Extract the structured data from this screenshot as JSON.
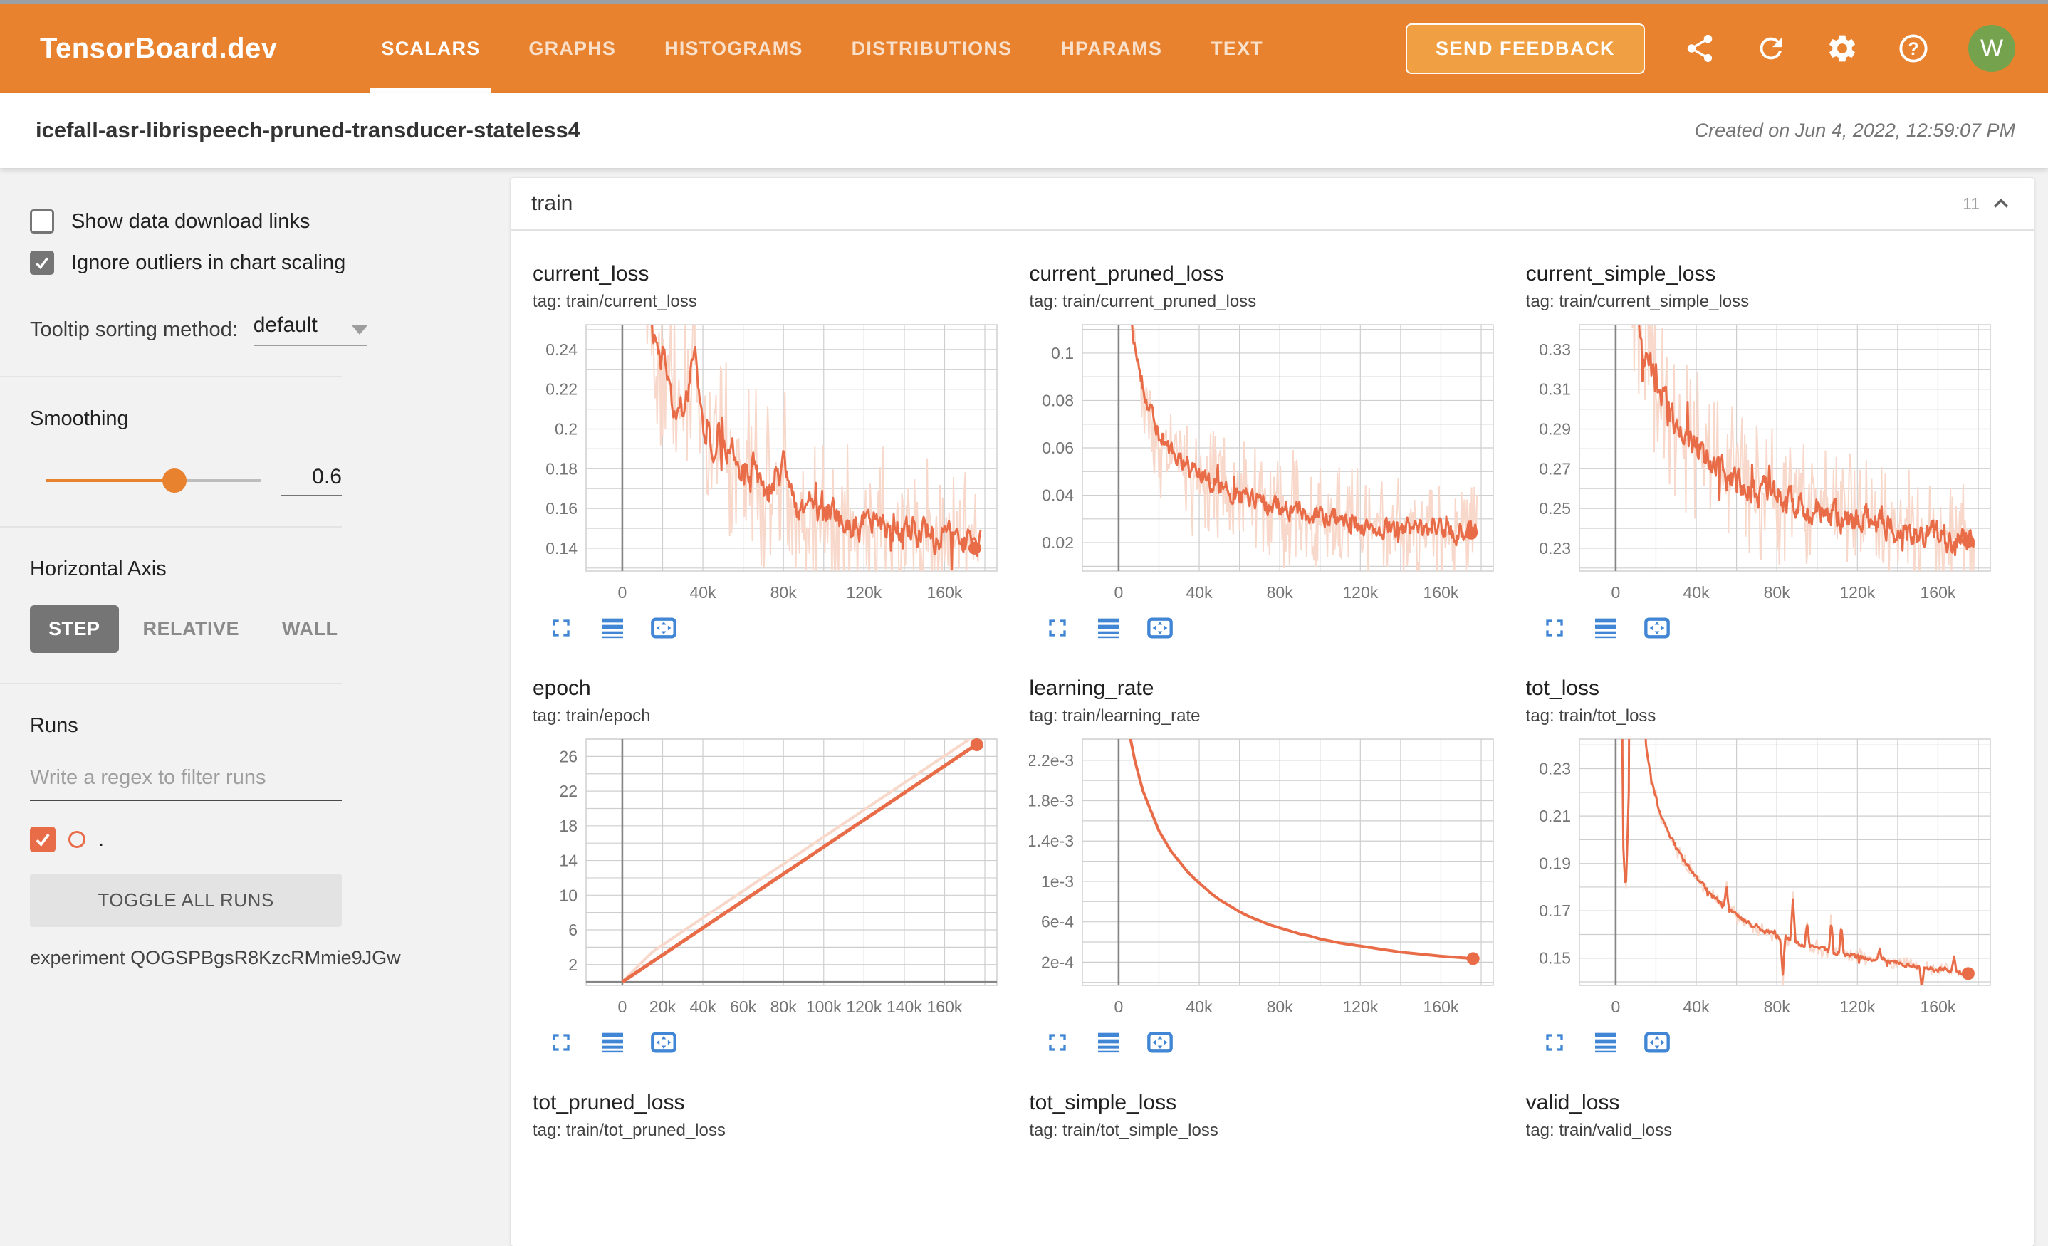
{
  "navbar": {
    "brand": "TensorBoard.dev",
    "tabs": [
      {
        "label": "SCALARS",
        "active": true
      },
      {
        "label": "GRAPHS",
        "active": false
      },
      {
        "label": "HISTOGRAMS",
        "active": false
      },
      {
        "label": "DISTRIBUTIONS",
        "active": false
      },
      {
        "label": "HPARAMS",
        "active": false
      },
      {
        "label": "TEXT",
        "active": false
      }
    ],
    "feedback_button": "SEND FEEDBACK",
    "icons": [
      "share",
      "refresh",
      "settings",
      "help"
    ],
    "avatar": "W",
    "colors": {
      "bar": "#e8822f",
      "feedback_bg": "#f0a043",
      "avatar_bg": "#75a24c"
    }
  },
  "header": {
    "title": "icefall-asr-librispeech-pruned-transducer-stateless4",
    "created": "Created on Jun 4, 2022, 12:59:07 PM"
  },
  "sidebar": {
    "checkboxes": [
      {
        "label": "Show data download links",
        "checked": false
      },
      {
        "label": "Ignore outliers in chart scaling",
        "checked": true
      }
    ],
    "tooltip_sorting": {
      "label": "Tooltip sorting method:",
      "value": "default"
    },
    "smoothing": {
      "label": "Smoothing",
      "value": "0.6",
      "fraction": 0.6
    },
    "horizontal_axis": {
      "label": "Horizontal Axis",
      "options": [
        {
          "label": "STEP",
          "active": true
        },
        {
          "label": "RELATIVE",
          "active": false
        },
        {
          "label": "WALL",
          "active": false
        }
      ]
    },
    "runs": {
      "label": "Runs",
      "filter_placeholder": "Write a regex to filter runs",
      "run_name": ".",
      "run_checked": true,
      "run_color": "#e96c48",
      "toggle_button": "TOGGLE ALL RUNS",
      "experiment": "experiment QOGSPBgsR8KzcRMmie9JGw"
    }
  },
  "main": {
    "section": {
      "name": "train",
      "count": "11"
    }
  },
  "chart_style": {
    "line": "#e96c48",
    "band": "#f8d8ca",
    "grid": "#cecece",
    "axis": "#858585",
    "tick": "#757575",
    "icon_blue": "#4186d4"
  },
  "chart_data": [
    {
      "type": "line",
      "render": "full",
      "title": "current_loss",
      "tag": "tag: train/current_loss",
      "xlim": [
        -18000,
        186000
      ],
      "ylim": [
        0.1285,
        0.2525
      ],
      "xgrid": 20000,
      "ygrid": 0.01,
      "xticks": [
        [
          0,
          "0"
        ],
        [
          40000,
          "40k"
        ],
        [
          80000,
          "80k"
        ],
        [
          120000,
          "120k"
        ],
        [
          160000,
          "160k"
        ]
      ],
      "yticks": [
        [
          0.14,
          "0.14"
        ],
        [
          0.16,
          "0.16"
        ],
        [
          0.18,
          "0.18"
        ],
        [
          0.2,
          "0.2"
        ],
        [
          0.22,
          "0.22"
        ],
        [
          0.24,
          "0.24"
        ]
      ],
      "xstart": 2000,
      "xend": 178000,
      "noise": 0.008,
      "band": 0.052,
      "seed": 11,
      "lw": 3,
      "end_dot": true,
      "trend": [
        [
          2000,
          0.5
        ],
        [
          8000,
          0.32
        ],
        [
          12000,
          0.28
        ],
        [
          15000,
          0.25
        ],
        [
          18000,
          0.232
        ],
        [
          21000,
          0.24
        ],
        [
          24000,
          0.215
        ],
        [
          27000,
          0.205
        ],
        [
          30000,
          0.21
        ],
        [
          33000,
          0.22
        ],
        [
          36000,
          0.235
        ],
        [
          39000,
          0.205
        ],
        [
          42000,
          0.198
        ],
        [
          45000,
          0.192
        ],
        [
          48000,
          0.2
        ],
        [
          52000,
          0.185
        ],
        [
          56000,
          0.19
        ],
        [
          60000,
          0.178
        ],
        [
          64000,
          0.183
        ],
        [
          68000,
          0.173
        ],
        [
          72000,
          0.168
        ],
        [
          76000,
          0.178
        ],
        [
          80000,
          0.182
        ],
        [
          84000,
          0.163
        ],
        [
          88000,
          0.16
        ],
        [
          92000,
          0.165
        ],
        [
          96000,
          0.158
        ],
        [
          100000,
          0.155
        ],
        [
          104000,
          0.162
        ],
        [
          108000,
          0.152
        ],
        [
          112000,
          0.155
        ],
        [
          116000,
          0.15
        ],
        [
          120000,
          0.153
        ],
        [
          124000,
          0.149
        ],
        [
          128000,
          0.155
        ],
        [
          132000,
          0.148
        ],
        [
          136000,
          0.152
        ],
        [
          140000,
          0.146
        ],
        [
          144000,
          0.151
        ],
        [
          148000,
          0.145
        ],
        [
          152000,
          0.149
        ],
        [
          156000,
          0.143
        ],
        [
          160000,
          0.148
        ],
        [
          164000,
          0.142
        ],
        [
          168000,
          0.146
        ],
        [
          172000,
          0.141
        ],
        [
          175000,
          0.14
        ]
      ]
    },
    {
      "type": "line",
      "render": "full",
      "title": "current_pruned_loss",
      "tag": "tag: train/current_pruned_loss",
      "xlim": [
        -18000,
        186000
      ],
      "ylim": [
        0.008,
        0.112
      ],
      "xgrid": 20000,
      "ygrid": 0.01,
      "xticks": [
        [
          0,
          "0"
        ],
        [
          40000,
          "40k"
        ],
        [
          80000,
          "80k"
        ],
        [
          120000,
          "120k"
        ],
        [
          160000,
          "160k"
        ]
      ],
      "yticks": [
        [
          0.02,
          "0.02"
        ],
        [
          0.04,
          "0.04"
        ],
        [
          0.06,
          "0.06"
        ],
        [
          0.08,
          "0.08"
        ],
        [
          0.1,
          "0.1"
        ]
      ],
      "xstart": 2000,
      "xend": 178000,
      "noise": 0.005,
      "band": 0.03,
      "seed": 22,
      "lw": 3,
      "end_dot": true,
      "trend": [
        [
          2000,
          0.16
        ],
        [
          5000,
          0.125
        ],
        [
          8000,
          0.105
        ],
        [
          10000,
          0.095
        ],
        [
          12000,
          0.088
        ],
        [
          14000,
          0.08
        ],
        [
          16000,
          0.074
        ],
        [
          18000,
          0.07
        ],
        [
          20000,
          0.066
        ],
        [
          23000,
          0.062
        ],
        [
          26000,
          0.058
        ],
        [
          30000,
          0.055
        ],
        [
          34000,
          0.052
        ],
        [
          38000,
          0.049
        ],
        [
          42000,
          0.047
        ],
        [
          46000,
          0.045
        ],
        [
          50000,
          0.044
        ],
        [
          55000,
          0.042
        ],
        [
          60000,
          0.04
        ],
        [
          66000,
          0.038
        ],
        [
          72000,
          0.037
        ],
        [
          78000,
          0.035
        ],
        [
          84000,
          0.034
        ],
        [
          90000,
          0.033
        ],
        [
          96000,
          0.032
        ],
        [
          102000,
          0.031
        ],
        [
          108000,
          0.03
        ],
        [
          114000,
          0.029
        ],
        [
          120000,
          0.028
        ],
        [
          128000,
          0.027
        ],
        [
          136000,
          0.0265
        ],
        [
          144000,
          0.026
        ],
        [
          152000,
          0.0255
        ],
        [
          160000,
          0.025
        ],
        [
          168000,
          0.0245
        ],
        [
          175000,
          0.024
        ]
      ]
    },
    {
      "type": "line",
      "render": "full",
      "title": "current_simple_loss",
      "tag": "tag: train/current_simple_loss",
      "xlim": [
        -18000,
        186000
      ],
      "ylim": [
        0.2185,
        0.3425
      ],
      "xgrid": 20000,
      "ygrid": 0.01,
      "xticks": [
        [
          0,
          "0"
        ],
        [
          40000,
          "40k"
        ],
        [
          80000,
          "80k"
        ],
        [
          120000,
          "120k"
        ],
        [
          160000,
          "160k"
        ]
      ],
      "yticks": [
        [
          0.23,
          "0.23"
        ],
        [
          0.25,
          "0.25"
        ],
        [
          0.27,
          "0.27"
        ],
        [
          0.29,
          "0.29"
        ],
        [
          0.31,
          "0.31"
        ],
        [
          0.33,
          "0.33"
        ]
      ],
      "xstart": 2000,
      "xend": 178000,
      "noise": 0.008,
      "band": 0.042,
      "seed": 33,
      "lw": 3,
      "end_dot": true,
      "trend": [
        [
          2000,
          0.42
        ],
        [
          6000,
          0.375
        ],
        [
          9000,
          0.352
        ],
        [
          12000,
          0.338
        ],
        [
          15000,
          0.326
        ],
        [
          18000,
          0.318
        ],
        [
          21000,
          0.31
        ],
        [
          24000,
          0.303
        ],
        [
          27000,
          0.297
        ],
        [
          30000,
          0.292
        ],
        [
          34000,
          0.287
        ],
        [
          38000,
          0.282
        ],
        [
          42000,
          0.278
        ],
        [
          46000,
          0.275
        ],
        [
          50000,
          0.272
        ],
        [
          55000,
          0.268
        ],
        [
          60000,
          0.265
        ],
        [
          65000,
          0.262
        ],
        [
          70000,
          0.259
        ],
        [
          76000,
          0.257
        ],
        [
          82000,
          0.255
        ],
        [
          88000,
          0.253
        ],
        [
          94000,
          0.251
        ],
        [
          100000,
          0.249
        ],
        [
          108000,
          0.247
        ],
        [
          116000,
          0.245
        ],
        [
          124000,
          0.243
        ],
        [
          132000,
          0.241
        ],
        [
          140000,
          0.24
        ],
        [
          148000,
          0.238
        ],
        [
          156000,
          0.237
        ],
        [
          164000,
          0.235
        ],
        [
          170000,
          0.234
        ],
        [
          175000,
          0.2335
        ]
      ]
    },
    {
      "type": "line",
      "render": "full",
      "title": "epoch",
      "tag": "tag: train/epoch",
      "xlim": [
        -18000,
        186000
      ],
      "ylim": [
        -0.4,
        28.0
      ],
      "xgrid": 20000,
      "ygrid": 2,
      "xticks": [
        [
          0,
          "0"
        ],
        [
          20000,
          "20k"
        ],
        [
          40000,
          "40k"
        ],
        [
          60000,
          "60k"
        ],
        [
          80000,
          "80k"
        ],
        [
          100000,
          "100k"
        ],
        [
          120000,
          "120k"
        ],
        [
          140000,
          "140k"
        ],
        [
          160000,
          "160k"
        ]
      ],
      "yticks": [
        [
          2,
          "2"
        ],
        [
          6,
          "6"
        ],
        [
          10,
          "10"
        ],
        [
          14,
          "14"
        ],
        [
          18,
          "18"
        ],
        [
          22,
          "22"
        ],
        [
          26,
          "26"
        ]
      ],
      "xstart": 0,
      "xend": 176000,
      "noise": 0,
      "band": 0,
      "raw_shift": 1.15,
      "seed": 44,
      "lw": 5,
      "end_dot": true,
      "zero_y": 0,
      "trend": [
        [
          0,
          0.0
        ],
        [
          176000,
          27.4
        ]
      ]
    },
    {
      "type": "line",
      "render": "full",
      "title": "learning_rate",
      "tag": "tag: train/learning_rate",
      "xlim": [
        -18000,
        186000
      ],
      "ylim": [
        -3e-05,
        0.00241
      ],
      "xgrid": 20000,
      "ygrid": 0.0002,
      "xticks": [
        [
          0,
          "0"
        ],
        [
          40000,
          "40k"
        ],
        [
          80000,
          "80k"
        ],
        [
          120000,
          "120k"
        ],
        [
          160000,
          "160k"
        ]
      ],
      "yticks": [
        [
          0.0002,
          "2e-4"
        ],
        [
          0.0006,
          "6e-4"
        ],
        [
          0.001,
          "1e-3"
        ],
        [
          0.0014,
          "1.4e-3"
        ],
        [
          0.0018,
          "1.8e-3"
        ],
        [
          0.0022,
          "2.2e-3"
        ]
      ],
      "xstart": 4000,
      "xend": 176000,
      "noise": 0,
      "band": 0,
      "seed": 55,
      "lw": 4,
      "end_dot": true,
      "trend": [
        [
          4000,
          0.0026
        ],
        [
          6000,
          0.0024
        ],
        [
          8000,
          0.0022
        ],
        [
          10000,
          0.00205
        ],
        [
          12000,
          0.0019
        ],
        [
          14000,
          0.0018
        ],
        [
          17000,
          0.00165
        ],
        [
          20000,
          0.0015
        ],
        [
          23000,
          0.0014
        ],
        [
          26000,
          0.0013
        ],
        [
          30000,
          0.0012
        ],
        [
          34000,
          0.0011
        ],
        [
          38000,
          0.00102
        ],
        [
          42000,
          0.00095
        ],
        [
          46000,
          0.00088
        ],
        [
          50000,
          0.00082
        ],
        [
          55000,
          0.00076
        ],
        [
          60000,
          0.0007
        ],
        [
          65000,
          0.00065
        ],
        [
          70000,
          0.00061
        ],
        [
          75000,
          0.00057
        ],
        [
          80000,
          0.00054
        ],
        [
          85000,
          0.00051
        ],
        [
          90000,
          0.00048
        ],
        [
          95000,
          0.00046
        ],
        [
          100000,
          0.00043
        ],
        [
          110000,
          0.00039
        ],
        [
          120000,
          0.00036
        ],
        [
          130000,
          0.00033
        ],
        [
          140000,
          0.0003
        ],
        [
          150000,
          0.00028
        ],
        [
          160000,
          0.00026
        ],
        [
          170000,
          0.000245
        ],
        [
          176000,
          0.000235
        ]
      ]
    },
    {
      "type": "line",
      "render": "full",
      "title": "tot_loss",
      "tag": "tag: train/tot_loss",
      "xlim": [
        -18000,
        186000
      ],
      "ylim": [
        0.1385,
        0.2425
      ],
      "xgrid": 20000,
      "ygrid": 0.01,
      "xticks": [
        [
          0,
          "0"
        ],
        [
          40000,
          "40k"
        ],
        [
          80000,
          "80k"
        ],
        [
          120000,
          "120k"
        ],
        [
          160000,
          "160k"
        ]
      ],
      "yticks": [
        [
          0.15,
          "0.15"
        ],
        [
          0.17,
          "0.17"
        ],
        [
          0.19,
          "0.19"
        ],
        [
          0.21,
          "0.21"
        ],
        [
          0.23,
          "0.23"
        ]
      ],
      "xstart": 2000,
      "xend": 178000,
      "noise": 0.0012,
      "band": 0.004,
      "seed": 66,
      "lw": 3,
      "end_dot": true,
      "spikes": [
        [
          55000,
          0.013
        ],
        [
          83000,
          -0.02
        ],
        [
          88000,
          0.022
        ],
        [
          95000,
          0.012
        ],
        [
          107000,
          0.017
        ],
        [
          112000,
          0.015
        ],
        [
          131000,
          0.006
        ],
        [
          152000,
          -0.013
        ],
        [
          168000,
          0.007
        ]
      ],
      "trend": [
        [
          2000,
          0.55
        ],
        [
          3500,
          0.2
        ],
        [
          5000,
          0.178
        ],
        [
          6500,
          0.22
        ],
        [
          8000,
          0.5
        ],
        [
          12000,
          0.3
        ],
        [
          15000,
          0.24
        ],
        [
          18000,
          0.225
        ],
        [
          22000,
          0.211
        ],
        [
          27000,
          0.201
        ],
        [
          33000,
          0.192
        ],
        [
          42000,
          0.182
        ],
        [
          50000,
          0.175
        ],
        [
          55000,
          0.171
        ],
        [
          65000,
          0.165
        ],
        [
          78000,
          0.16
        ],
        [
          88000,
          0.157
        ],
        [
          95000,
          0.155
        ],
        [
          110000,
          0.152
        ],
        [
          125000,
          0.15
        ],
        [
          140000,
          0.148
        ],
        [
          155000,
          0.146
        ],
        [
          165000,
          0.145
        ],
        [
          175000,
          0.1435
        ]
      ]
    },
    {
      "type": "line",
      "render": "titles",
      "title": "tot_pruned_loss",
      "tag": "tag: train/tot_pruned_loss"
    },
    {
      "type": "line",
      "render": "titles",
      "title": "tot_simple_loss",
      "tag": "tag: train/tot_simple_loss"
    },
    {
      "type": "line",
      "render": "titles",
      "title": "valid_loss",
      "tag": "tag: train/valid_loss"
    }
  ]
}
